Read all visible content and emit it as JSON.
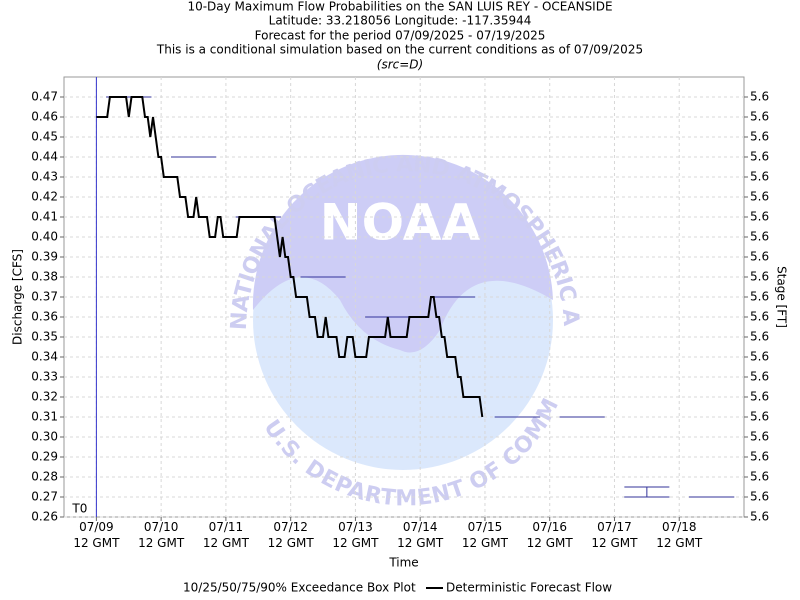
{
  "chart_data": {
    "type": "step-forecast",
    "title_lines": [
      "10-Day Maximum Flow Probabilities on the SAN LUIS REY - OCEANSIDE",
      "Latitude: 33.218056 Longitude: -117.35944",
      "Forecast for the period 07/09/2025 - 07/19/2025",
      "This is a conditional simulation based on the current conditions as of 07/09/2025",
      "(src=D)"
    ],
    "x_label": "Time",
    "y_label": "Discharge [CFS]",
    "y2_label": "Stage [FT]",
    "watermark": {
      "logo": "NOAA",
      "top_ring": "NATIONAL OCEANIC AND ATMOSPHERIC ADMINISTRATION",
      "bottom_ring": "U.S. DEPARTMENT OF COMMERCE"
    },
    "t0": {
      "label": "T0",
      "x": "07/09 12 GMT",
      "color": "#3333cc"
    },
    "grid": true,
    "xlim": [
      "07/09 00 GMT",
      "07/19 12 GMT"
    ],
    "xticks": [
      {
        "value": "07/09 12 GMT",
        "label": "07/09\n12 GMT"
      },
      {
        "value": "07/10 12 GMT",
        "label": "07/10\n12 GMT"
      },
      {
        "value": "07/11 12 GMT",
        "label": "07/11\n12 GMT"
      },
      {
        "value": "07/12 12 GMT",
        "label": "07/12\n12 GMT"
      },
      {
        "value": "07/13 12 GMT",
        "label": "07/13\n12 GMT"
      },
      {
        "value": "07/14 12 GMT",
        "label": "07/14\n12 GMT"
      },
      {
        "value": "07/15 12 GMT",
        "label": "07/15\n12 GMT"
      },
      {
        "value": "07/16 12 GMT",
        "label": "07/16\n12 GMT"
      },
      {
        "value": "07/17 12 GMT",
        "label": "07/17\n12 GMT"
      },
      {
        "value": "07/18 12 GMT",
        "label": "07/18\n12 GMT"
      }
    ],
    "ylim": [
      0.26,
      0.48
    ],
    "yticks": [
      0.26,
      0.27,
      0.28,
      0.29,
      {
        "value": 0.3,
        "label": "0.30"
      },
      0.31,
      0.32,
      0.33,
      0.34,
      0.35,
      0.36,
      0.37,
      0.38,
      0.39,
      {
        "value": 0.4,
        "label": "0.40"
      },
      0.41,
      0.42,
      0.43,
      0.44,
      0.45,
      0.46,
      0.47
    ],
    "y2lim": [
      5.58,
      5.624
    ],
    "y2ticks": [
      {
        "value": 5.58,
        "label": "5.6"
      },
      {
        "value": 5.582,
        "label": "5.6"
      },
      {
        "value": 5.584,
        "label": "5.6"
      },
      {
        "value": 5.586,
        "label": "5.6"
      },
      {
        "value": 5.588,
        "label": "5.6"
      },
      {
        "value": 5.59,
        "label": "5.6"
      },
      {
        "value": 5.592,
        "label": "5.6"
      },
      {
        "value": 5.594,
        "label": "5.6"
      },
      {
        "value": 5.596,
        "label": "5.6"
      },
      {
        "value": 5.598,
        "label": "5.6"
      },
      {
        "value": 5.6,
        "label": "5.6"
      },
      {
        "value": 5.602,
        "label": "5.6"
      },
      {
        "value": 5.604,
        "label": "5.6"
      },
      {
        "value": 5.606,
        "label": "5.6"
      },
      {
        "value": 5.608,
        "label": "5.6"
      },
      {
        "value": 5.61,
        "label": "5.6"
      },
      {
        "value": 5.612,
        "label": "5.6"
      },
      {
        "value": 5.614,
        "label": "5.6"
      },
      {
        "value": 5.616,
        "label": "5.6"
      },
      {
        "value": 5.618,
        "label": "5.6"
      },
      {
        "value": 5.62,
        "label": "5.6"
      },
      {
        "value": 5.622,
        "label": "5.6"
      }
    ],
    "boxes": {
      "name": "10/25/50/75/90% Exceedance Box Plot",
      "color": "#33339a",
      "x": [
        "07/10 00 GMT",
        "07/11 00 GMT",
        "07/12 00 GMT",
        "07/13 00 GMT",
        "07/14 00 GMT",
        "07/15 00 GMT",
        "07/16 00 GMT",
        "07/17 00 GMT",
        "07/18 00 GMT",
        "07/19 00 GMT"
      ],
      "q10": [
        0.47,
        0.44,
        0.41,
        0.38,
        0.36,
        0.37,
        0.31,
        0.31,
        0.27,
        0.27
      ],
      "q25": [
        0.47,
        0.44,
        0.41,
        0.38,
        0.36,
        0.37,
        0.31,
        0.31,
        0.27,
        0.27
      ],
      "q50": [
        0.47,
        0.44,
        0.41,
        0.38,
        0.36,
        0.37,
        0.31,
        0.31,
        0.27,
        0.27
      ],
      "q75": [
        0.47,
        0.44,
        0.41,
        0.38,
        0.36,
        0.37,
        0.31,
        0.31,
        0.27,
        0.27
      ],
      "q90": [
        0.47,
        0.44,
        0.41,
        0.38,
        0.36,
        0.37,
        0.31,
        0.31,
        0.275,
        0.27
      ]
    },
    "series": [
      {
        "name": "Deterministic Forecast Flow",
        "color": "#000000",
        "x": [
          "07/09 12 GMT",
          "07/09 16 GMT",
          "07/09 17 GMT",
          "07/09 23 GMT",
          "07/10 00 GMT",
          "07/10 01 GMT",
          "07/10 05 GMT",
          "07/10 06 GMT",
          "07/10 07 GMT",
          "07/10 08 GMT",
          "07/10 09 GMT",
          "07/10 10 GMT",
          "07/10 11 GMT",
          "07/10 12 GMT",
          "07/10 13 GMT",
          "07/10 18 GMT",
          "07/10 19 GMT",
          "07/10 21 GMT",
          "07/10 22 GMT",
          "07/11 00 GMT",
          "07/11 01 GMT",
          "07/11 02 GMT",
          "07/11 05 GMT",
          "07/11 06 GMT",
          "07/11 08 GMT",
          "07/11 09 GMT",
          "07/11 10 GMT",
          "07/11 11 GMT",
          "07/11 16 GMT",
          "07/11 17 GMT",
          "07/12 06 GMT",
          "07/12 07 GMT",
          "07/12 08 GMT",
          "07/12 09 GMT",
          "07/12 10 GMT",
          "07/12 11 GMT",
          "07/12 12 GMT",
          "07/12 13 GMT",
          "07/12 14 GMT",
          "07/12 18 GMT",
          "07/12 19 GMT",
          "07/12 21 GMT",
          "07/12 22 GMT",
          "07/13 00 GMT",
          "07/13 01 GMT",
          "07/13 02 GMT",
          "07/13 05 GMT",
          "07/13 06 GMT",
          "07/13 08 GMT",
          "07/13 09 GMT",
          "07/13 11 GMT",
          "07/13 12 GMT",
          "07/13 16 GMT",
          "07/13 17 GMT",
          "07/13 23 GMT",
          "07/14 00 GMT",
          "07/14 01 GMT",
          "07/14 07 GMT",
          "07/14 08 GMT",
          "07/14 15 GMT",
          "07/14 16 GMT",
          "07/14 17 GMT",
          "07/14 18 GMT",
          "07/14 19 GMT",
          "07/14 20 GMT",
          "07/14 21 GMT",
          "07/14 22 GMT",
          "07/15 01 GMT",
          "07/15 02 GMT",
          "07/15 03 GMT",
          "07/15 04 GMT",
          "07/15 10 GMT",
          "07/15 11 GMT"
        ],
        "values": [
          0.46,
          0.46,
          0.47,
          0.47,
          0.46,
          0.47,
          0.47,
          0.46,
          0.46,
          0.45,
          0.46,
          0.45,
          0.44,
          0.44,
          0.43,
          0.43,
          0.42,
          0.42,
          0.41,
          0.41,
          0.42,
          0.41,
          0.41,
          0.4,
          0.4,
          0.41,
          0.41,
          0.4,
          0.4,
          0.41,
          0.41,
          0.4,
          0.39,
          0.4,
          0.39,
          0.39,
          0.38,
          0.38,
          0.37,
          0.37,
          0.36,
          0.36,
          0.35,
          0.35,
          0.36,
          0.35,
          0.35,
          0.34,
          0.34,
          0.35,
          0.35,
          0.34,
          0.34,
          0.35,
          0.35,
          0.36,
          0.35,
          0.35,
          0.36,
          0.36,
          0.37,
          0.37,
          0.36,
          0.36,
          0.35,
          0.35,
          0.34,
          0.34,
          0.33,
          0.33,
          0.32,
          0.32,
          0.31
        ]
      }
    ]
  }
}
